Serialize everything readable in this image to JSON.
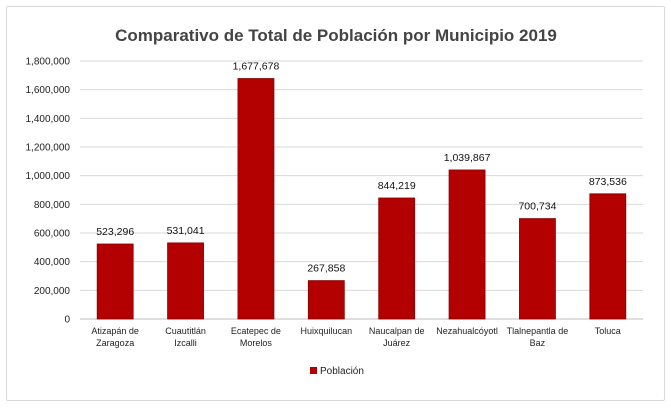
{
  "chart_data": {
    "type": "bar",
    "title": "Comparativo de Total de Población por Municipio 2019",
    "categories": [
      [
        "Atizapán de",
        "Zaragoza"
      ],
      [
        "Cuautitlán",
        "Izcalli"
      ],
      [
        "Ecatepec de",
        "Morelos"
      ],
      [
        "Huixquilucan"
      ],
      [
        "Naucalpan de",
        "Juárez"
      ],
      [
        "Nezahualcóyotl"
      ],
      [
        "Tlalnepantla de",
        "Baz"
      ],
      [
        "Toluca"
      ]
    ],
    "series": [
      {
        "name": "Población",
        "values": [
          523296,
          531041,
          1677678,
          267858,
          844219,
          1039867,
          700734,
          873536
        ],
        "labels": [
          "523,296",
          "531,041",
          "1,677,678",
          "267,858",
          "844,219",
          "1,039,867",
          "700,734",
          "873,536"
        ]
      }
    ],
    "yticks": [
      "0",
      "200,000",
      "400,000",
      "600,000",
      "800,000",
      "1,000,000",
      "1,200,000",
      "1,400,000",
      "1,600,000",
      "1,800,000"
    ],
    "ylim": [
      0,
      1800000
    ],
    "grid": true,
    "legend_position": "bottom",
    "xlabel": "",
    "ylabel": ""
  },
  "colors": {
    "bar": "#b30000",
    "bar_edge": "#8a0000",
    "grid": "#d9d9d9",
    "axis": "#bfbfbf"
  }
}
